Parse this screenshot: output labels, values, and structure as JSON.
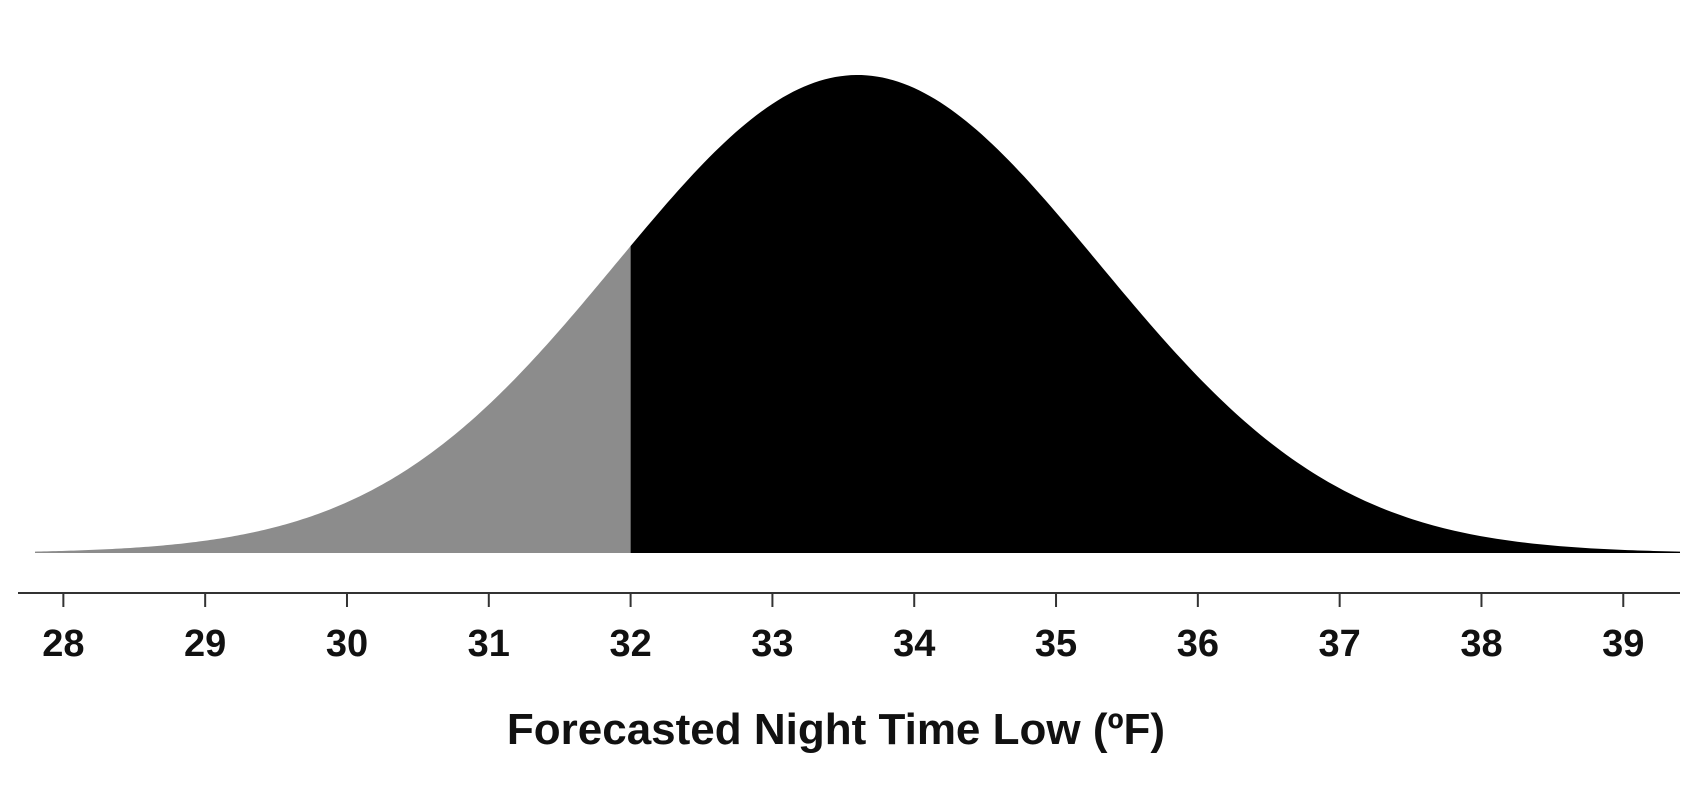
{
  "chart_data": {
    "type": "area",
    "title": "",
    "xlabel": "Forecasted Night Time Low (ºF)",
    "ylabel": "",
    "xlim": [
      27.8,
      39.4
    ],
    "xticks": [
      28,
      29,
      30,
      31,
      32,
      33,
      34,
      35,
      36,
      37,
      38,
      39
    ],
    "xtick_labels": [
      "28",
      "29",
      "30",
      "31",
      "32",
      "33",
      "34",
      "35",
      "36",
      "37",
      "38",
      "39"
    ],
    "grid": false,
    "legend": "none",
    "distribution": {
      "kind": "normal",
      "mean": 33.6,
      "sd": 1.7
    },
    "threshold": 32,
    "regions": [
      {
        "range": [
          27.8,
          32
        ],
        "color": "#8c8c8c"
      },
      {
        "range": [
          32,
          39.4
        ],
        "color": "#000000"
      }
    ]
  }
}
